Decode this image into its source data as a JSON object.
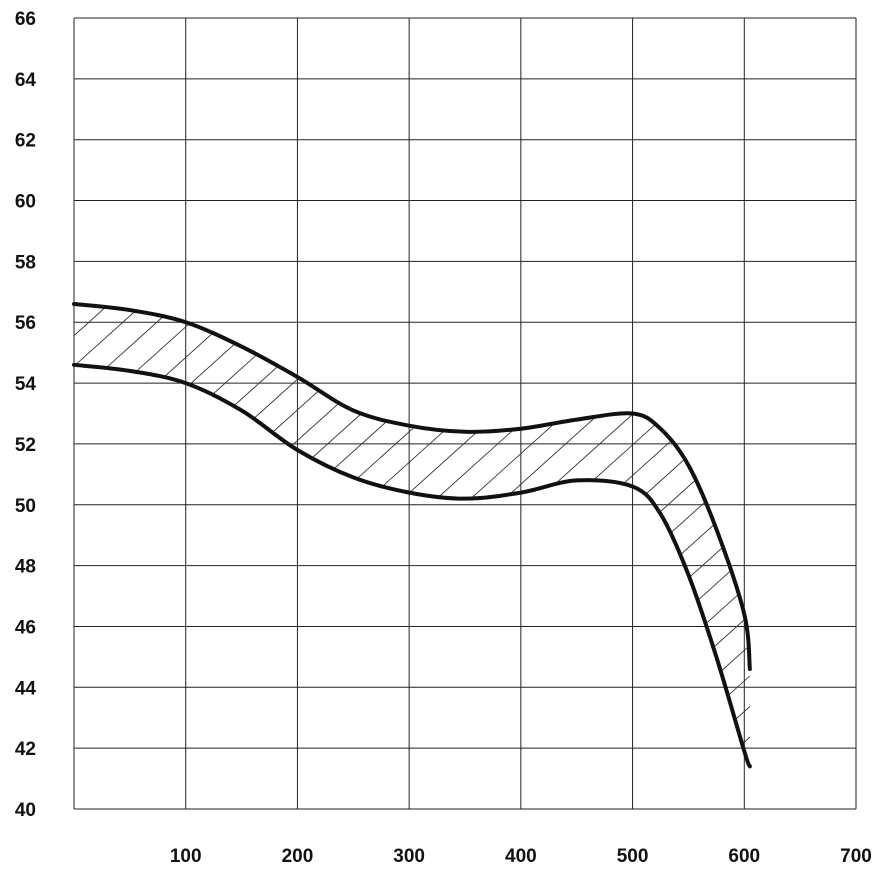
{
  "chart_data": {
    "type": "area",
    "title": "",
    "xlabel": "",
    "ylabel": "",
    "xlim": [
      0,
      700
    ],
    "ylim": [
      40,
      66
    ],
    "grid": true,
    "x_ticks": [
      100,
      200,
      300,
      400,
      500,
      600,
      700
    ],
    "y_ticks": [
      40,
      42,
      44,
      46,
      48,
      50,
      52,
      54,
      56,
      58,
      60,
      62,
      64,
      66
    ],
    "band_fill": "hatched",
    "series": [
      {
        "points": [
          [
            0,
            56.6
          ],
          [
            50,
            56.4
          ],
          [
            100,
            56.0
          ],
          [
            150,
            55.2
          ],
          [
            200,
            54.2
          ],
          [
            250,
            53.1
          ],
          [
            300,
            52.6
          ],
          [
            350,
            52.4
          ],
          [
            400,
            52.5
          ],
          [
            450,
            52.8
          ],
          [
            500,
            53.0
          ],
          [
            525,
            52.5
          ],
          [
            550,
            51.3
          ],
          [
            575,
            49.2
          ],
          [
            600,
            46.4
          ],
          [
            605,
            44.6
          ]
        ]
      },
      {
        "points": [
          [
            0,
            54.6
          ],
          [
            50,
            54.4
          ],
          [
            100,
            54.0
          ],
          [
            150,
            53.1
          ],
          [
            200,
            51.8
          ],
          [
            250,
            50.9
          ],
          [
            300,
            50.4
          ],
          [
            350,
            50.2
          ],
          [
            400,
            50.4
          ],
          [
            450,
            50.8
          ],
          [
            500,
            50.6
          ],
          [
            525,
            49.7
          ],
          [
            550,
            47.7
          ],
          [
            575,
            45.0
          ],
          [
            600,
            41.9
          ],
          [
            605,
            41.4
          ]
        ]
      }
    ]
  }
}
